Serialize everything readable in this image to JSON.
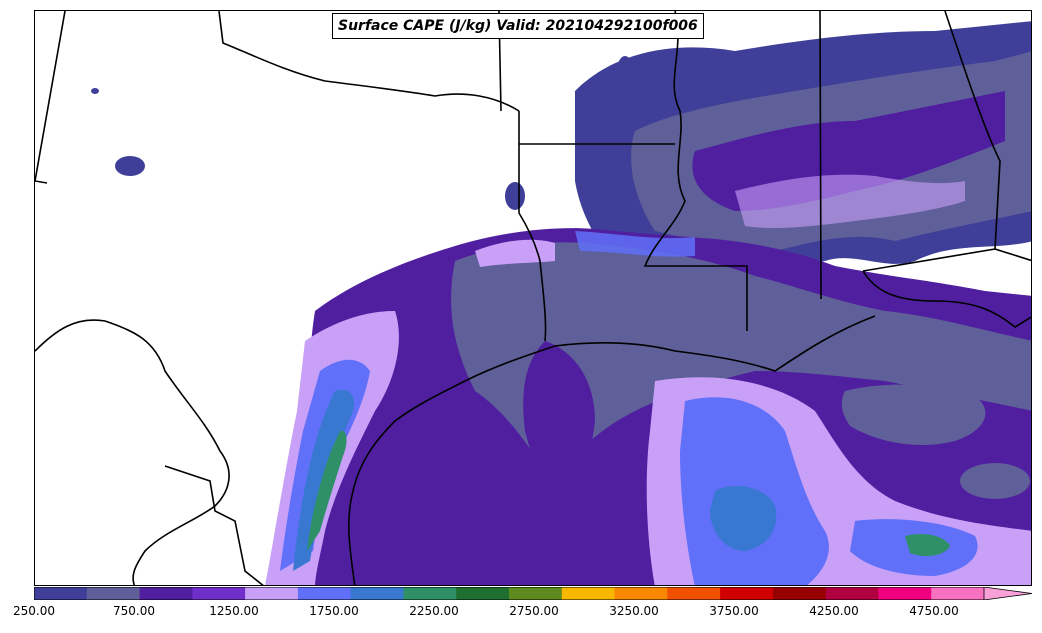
{
  "title": "Surface CAPE (J/kg) Valid: 202104292100f006",
  "colorbar": {
    "colors": [
      "#3f3f99",
      "#5f5f99",
      "#4f1fa0",
      "#6f2fc8",
      "#c8a0f8",
      "#6070f8",
      "#3878d0",
      "#2f9068",
      "#1f7030",
      "#5f8a20",
      "#f8b800",
      "#f88800",
      "#f05000",
      "#d00000",
      "#980000",
      "#b00040",
      "#f00080",
      "#f870c0",
      "#f8a0d8"
    ],
    "ticks": [
      {
        "label": "250.00",
        "value": 250
      },
      {
        "label": "750.00",
        "value": 750
      },
      {
        "label": "1250.00",
        "value": 1250
      },
      {
        "label": "1750.00",
        "value": 1750
      },
      {
        "label": "2250.00",
        "value": 2250
      },
      {
        "label": "2750.00",
        "value": 2750
      },
      {
        "label": "3250.00",
        "value": 3250
      },
      {
        "label": "3750.00",
        "value": 3750
      },
      {
        "label": "4250.00",
        "value": 4250
      },
      {
        "label": "4750.00",
        "value": 4750
      }
    ],
    "min": 250,
    "max": 5000,
    "step": 250,
    "extend": "max"
  },
  "map": {
    "region": "Texas / Louisiana / Gulf of Mexico",
    "field": "Surface CAPE"
  }
}
